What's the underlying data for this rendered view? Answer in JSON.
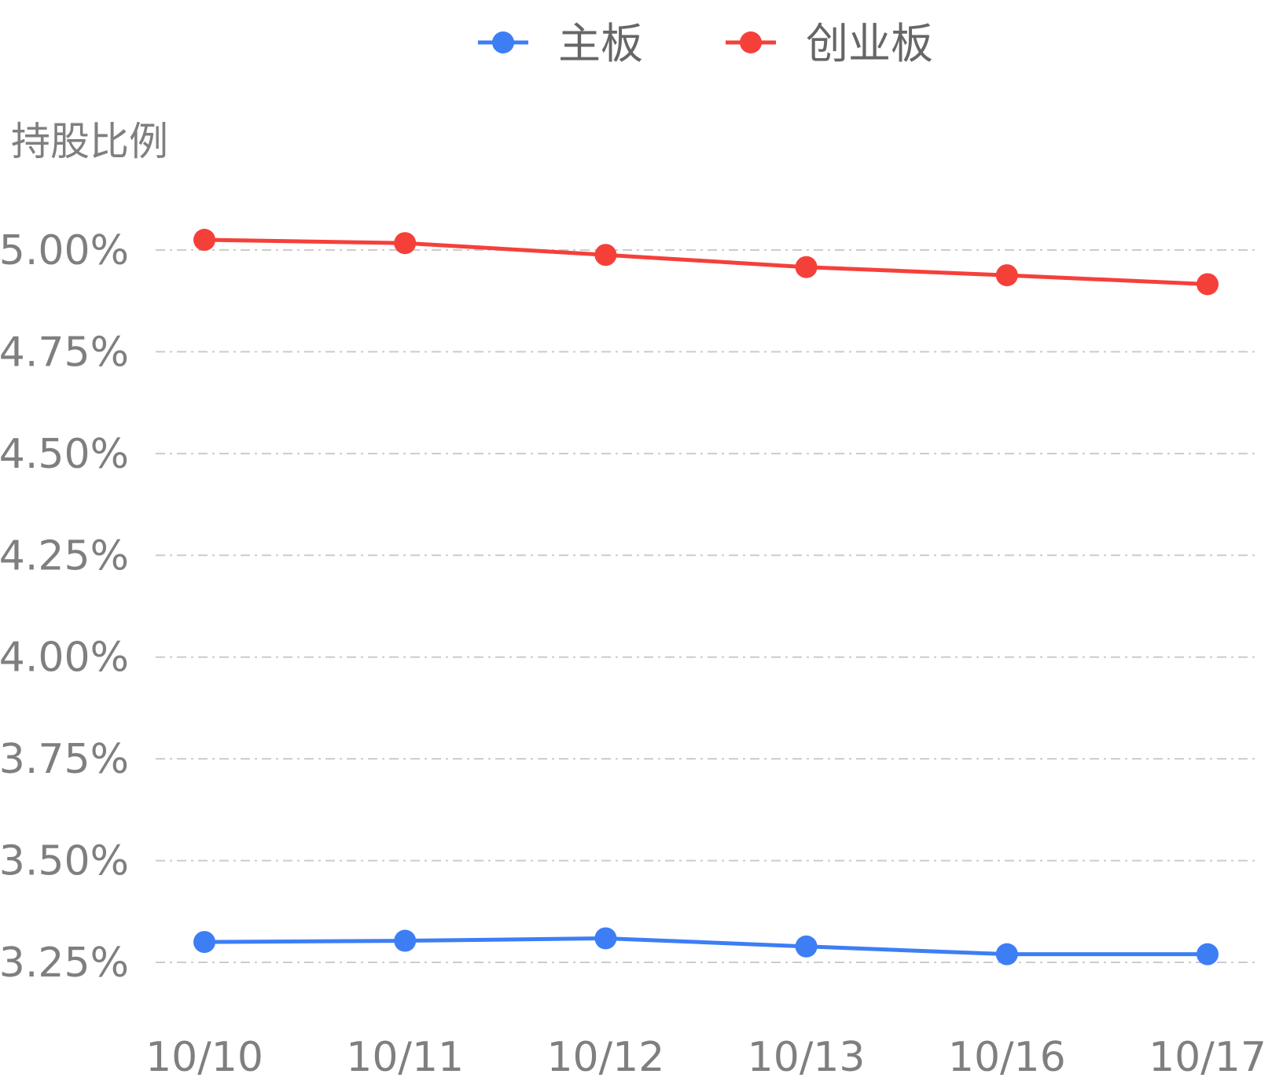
{
  "chart_data": {
    "type": "line",
    "ylabel": "持股比例",
    "categories": [
      "10/10",
      "10/11",
      "10/12",
      "10/13",
      "10/16",
      "10/17"
    ],
    "yticks": [
      "3.25%",
      "3.50%",
      "3.75%",
      "4.00%",
      "4.25%",
      "4.50%",
      "4.75%",
      "5.00%"
    ],
    "ylim": [
      3.25,
      5.0
    ],
    "grid": true,
    "legend_position": "top-center",
    "series": [
      {
        "name": "主板",
        "color": "#3d7ef5",
        "values": [
          3.3,
          3.303,
          3.309,
          3.289,
          3.27,
          3.27
        ]
      },
      {
        "name": "创业板",
        "color": "#f5403a",
        "values": [
          5.025,
          5.017,
          4.988,
          4.958,
          4.938,
          4.916
        ]
      }
    ]
  }
}
